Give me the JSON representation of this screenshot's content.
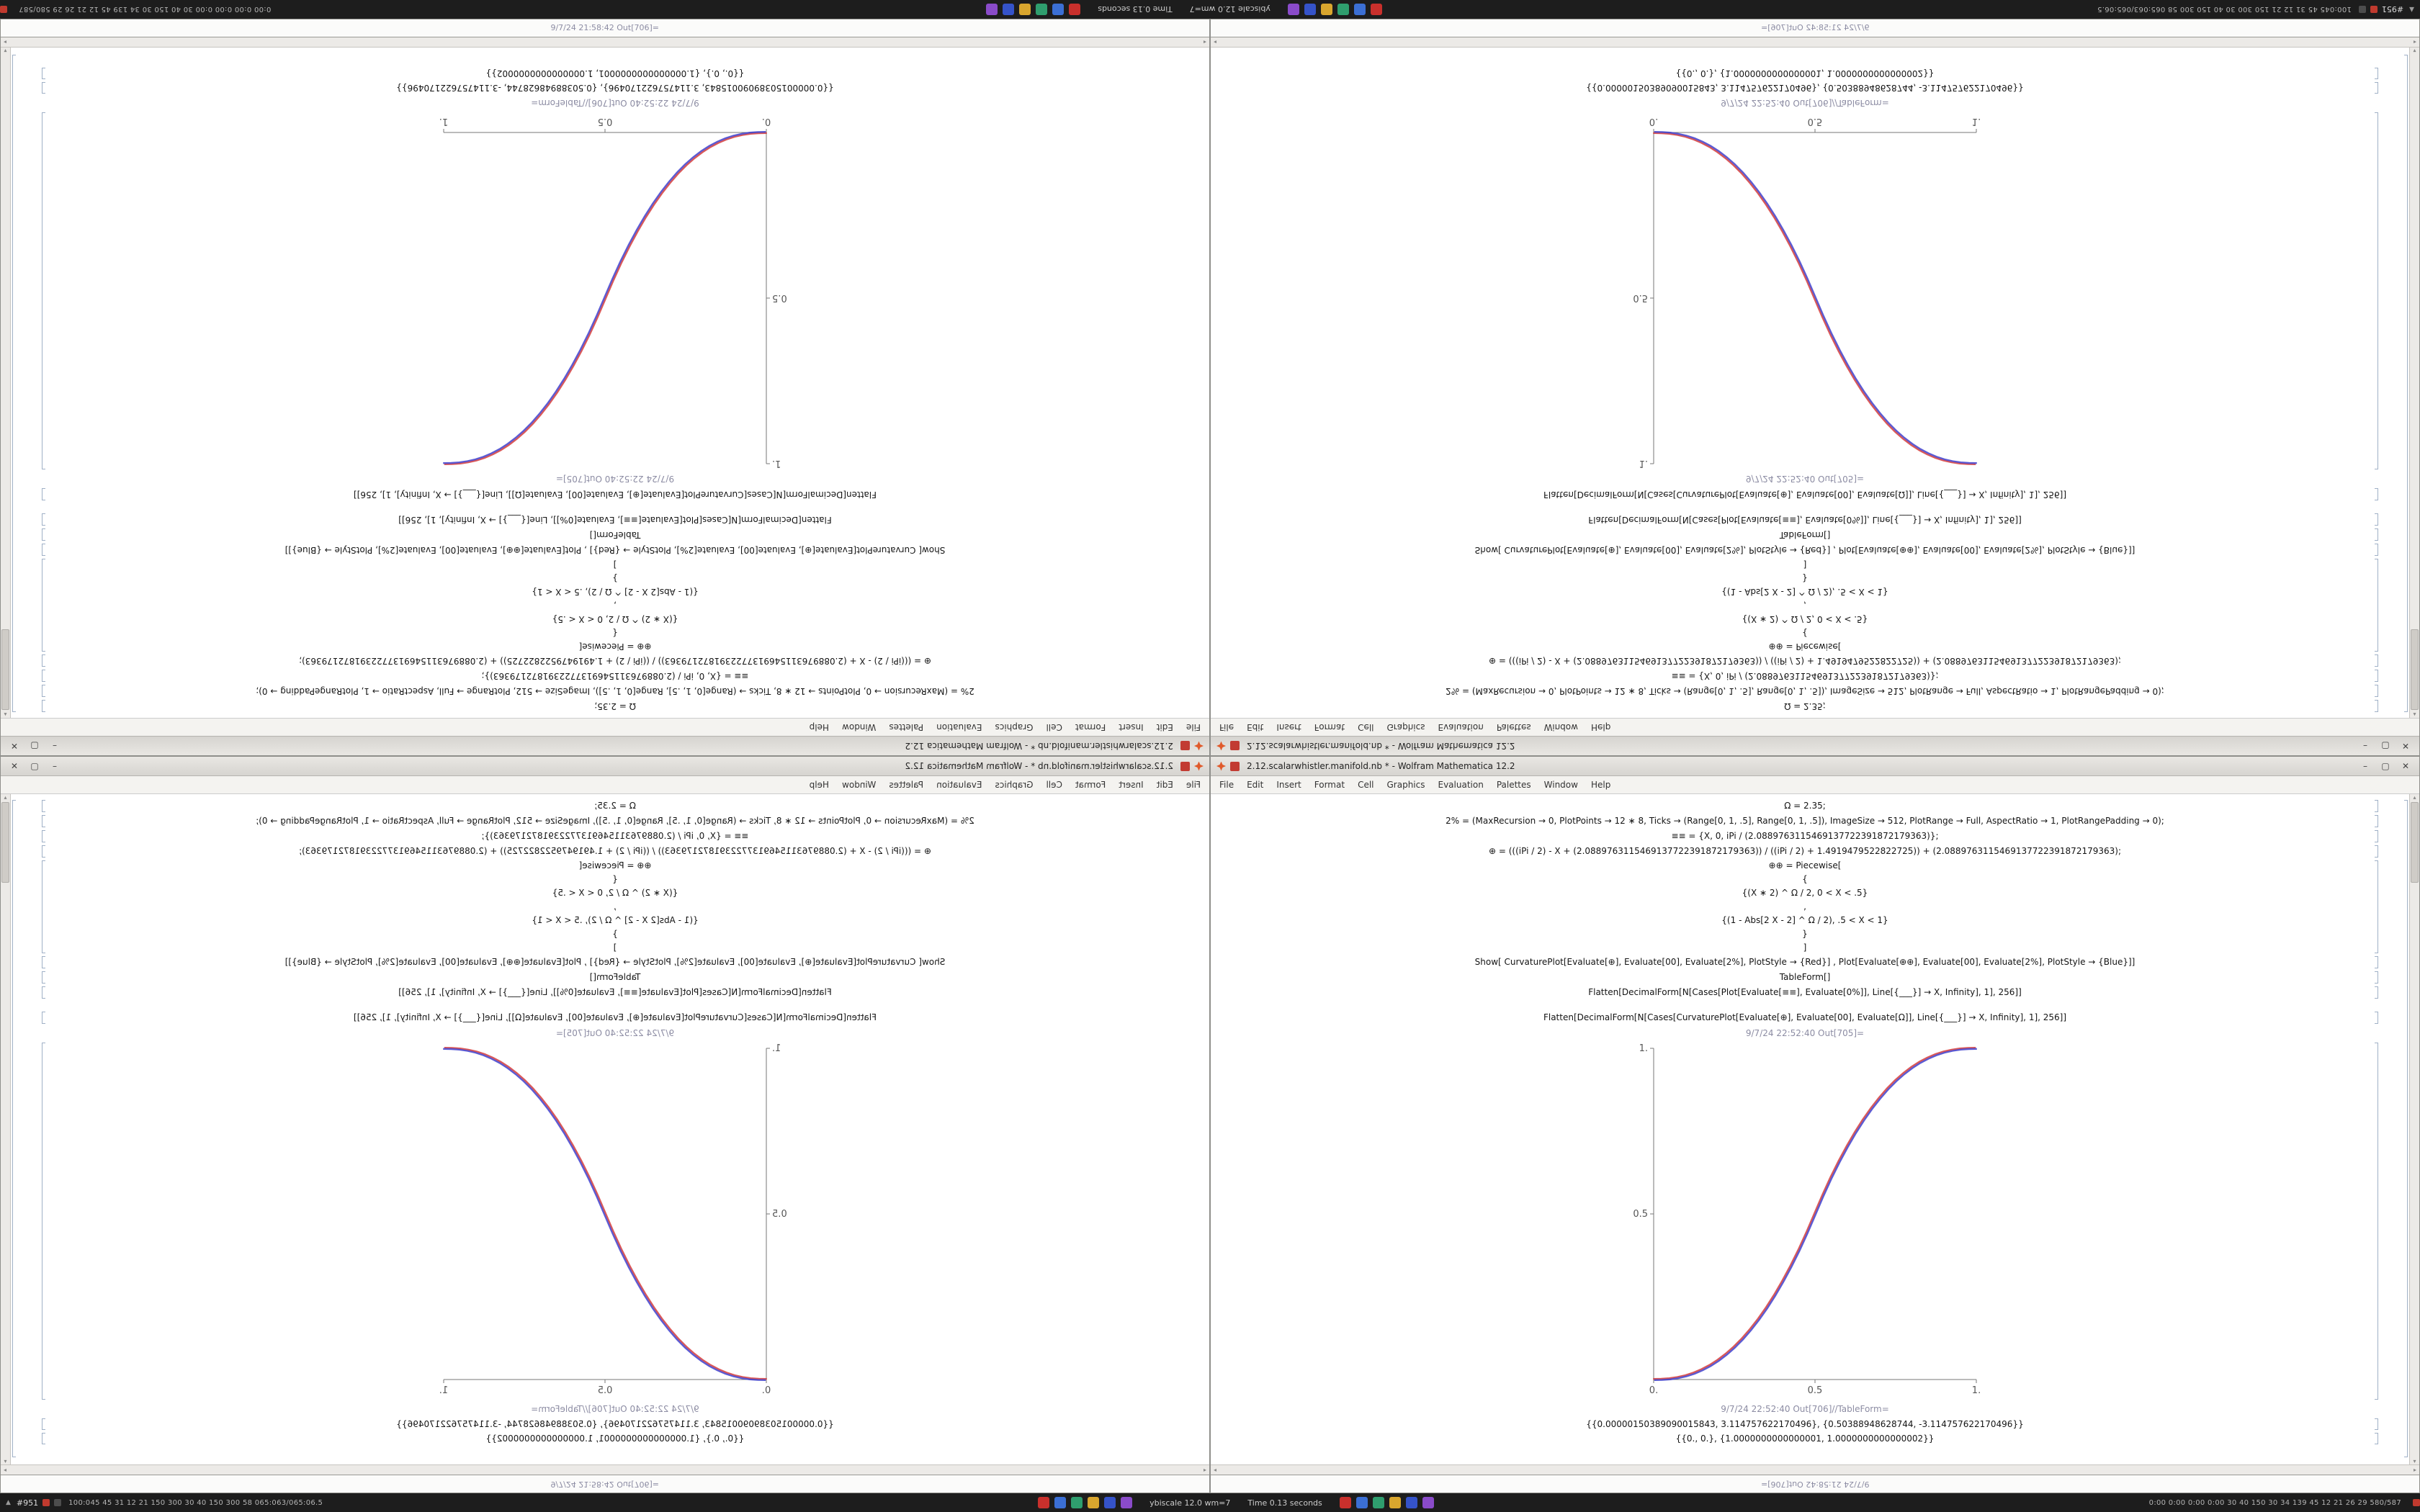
{
  "desktop": {
    "taskbar": {
      "left_marker": "#951",
      "left_stats": "100:045 45 31 12 21 150 300 30 40 150 300 58 065:063/065:06.5",
      "scale_label": "ybiscale 12.0 wm=7",
      "time_label": "Time 0.13 seconds",
      "right_stats": "0:00 0:00 0:00 0:00 30 40 150 30 34 139 45 12 21 26 29 580/587",
      "cluster_colors": [
        {
          "name": "record",
          "color": "#c9302c"
        },
        {
          "name": "chat",
          "color": "#3b6fd4"
        },
        {
          "name": "screen",
          "color": "#2f9e6e"
        },
        {
          "name": "alert",
          "color": "#d9a62e"
        },
        {
          "name": "files",
          "color": "#3553c9"
        },
        {
          "name": "media",
          "color": "#8a4bc9"
        }
      ]
    }
  },
  "window": {
    "title": "2.12.scalarwhistler.manifold.nb * - Wolfram Mathematica 12.2",
    "menu": [
      "File",
      "Edit",
      "Insert",
      "Format",
      "Cell",
      "Graphics",
      "Evaluation",
      "Palettes",
      "Window",
      "Help"
    ],
    "controls": {
      "minimize": "–",
      "maximize": "▢",
      "close": "✕"
    },
    "cells": {
      "in1": "Ω = 2.35;",
      "in2": "2% = (MaxRecursion → 0, PlotPoints → 12 ∗ 8, Ticks → (Range[0, 1, .5], Range[0, 1, .5]), ImageSize → 512, PlotRange → Full, AspectRatio → 1, PlotRangePadding → 0);",
      "in3": "≡≡ = {X, 0, iPi / (2.0889763115469137722391872179363)};",
      "in4": "⊕ = (((iPi / 2) - X + (2.0889763115469137722391872179363)) / ((iPi / 2) + 1.4919479522822725)) + (2.0889763115469137722391872179363);",
      "in5_lines": [
        "⊕⊕ = Piecewise[",
        "{",
        "{(X ∗ 2) ^ Ω / 2, 0 < X < .5}",
        ",",
        "{(1 - Abs[2 X - 2] ^ Ω / 2), .5 < X < 1}",
        "}",
        "]"
      ],
      "in6": "Show[  CurvaturePlot[Evaluate[⊕], Evaluate[00], Evaluate[2%], PlotStyle → {Red}] ,  Plot[Evaluate[⊕⊕], Evaluate[00], Evaluate[2%], PlotStyle → {Blue}]]",
      "in7": "TableForm[]",
      "in8": "Flatten[DecimalForm[N[Cases[Plot[Evaluate[≡≡], Evaluate[0%]], Line[{___}] → X, Infinity], 1], 256]]",
      "in9": "Flatten[DecimalForm[N[Cases[CurvaturePlot[Evaluate[⊕], Evaluate[00], Evaluate[Ω]], Line[{___}] → X, Infinity], 1], 256]]",
      "out1_label": "9/7/24 22:52:40 Out[705]=",
      "out2_label": "9/7/24 22:52:40 Out[706]//TableForm=",
      "out2_line1": "{{0.00000150389090015843, 3.114757622170496}, {0.50388948628744, -3.114757622170496}}",
      "out2_line2": "{{0., 0.}, {1.0000000000000001, 1.0000000000000002}}",
      "peek_label": "9/7/24 21:58:42 Out[706]="
    }
  },
  "chart_data": {
    "type": "line",
    "title": "",
    "xlabel": "",
    "ylabel": "",
    "xlim": [
      0,
      1
    ],
    "ylim": [
      0,
      1
    ],
    "grid": false,
    "legend": "none",
    "x_ticks": [
      "0.",
      "0.5",
      "1."
    ],
    "x_tick_vals": [
      0,
      0.5,
      1
    ],
    "y_ticks": [
      "0.5",
      "1."
    ],
    "y_tick_vals": [
      0.5,
      1
    ],
    "x": [
      0,
      0.025,
      0.05,
      0.075,
      0.1,
      0.125,
      0.15,
      0.175,
      0.2,
      0.225,
      0.25,
      0.275,
      0.3,
      0.325,
      0.35,
      0.375,
      0.4,
      0.425,
      0.45,
      0.475,
      0.5,
      0.525,
      0.55,
      0.575,
      0.6,
      0.625,
      0.65,
      0.675,
      0.7,
      0.725,
      0.75,
      0.775,
      0.8,
      0.825,
      0.85,
      0.875,
      0.9,
      0.925,
      0.95,
      0.975,
      1
    ],
    "series": [
      {
        "name": "CurvaturePlot (Red)",
        "color": "#d43c3c",
        "dx": -0.8,
        "dy": -0.8,
        "y": [
          0,
          0.0004,
          0.0022,
          0.0058,
          0.0114,
          0.0192,
          0.0295,
          0.0424,
          0.0581,
          0.0766,
          0.0981,
          0.1227,
          0.1506,
          0.1817,
          0.2163,
          0.2543,
          0.296,
          0.3413,
          0.3903,
          0.4433,
          0.5,
          0.5568,
          0.6097,
          0.6587,
          0.704,
          0.7457,
          0.7837,
          0.8183,
          0.8494,
          0.8773,
          0.9019,
          0.9235,
          0.9419,
          0.9576,
          0.9705,
          0.9808,
          0.9886,
          0.9942,
          0.9978,
          0.9996,
          1
        ]
      },
      {
        "name": "Plot (Blue)",
        "color": "#4040cc",
        "dx": 0.8,
        "dy": 0.8,
        "y": [
          0,
          0.0004,
          0.0022,
          0.0058,
          0.0114,
          0.0192,
          0.0295,
          0.0424,
          0.0581,
          0.0766,
          0.0981,
          0.1227,
          0.1506,
          0.1817,
          0.2163,
          0.2543,
          0.296,
          0.3413,
          0.3903,
          0.4433,
          0.5,
          0.5568,
          0.6097,
          0.6587,
          0.704,
          0.7457,
          0.7837,
          0.8183,
          0.8494,
          0.8773,
          0.9019,
          0.9235,
          0.9419,
          0.9576,
          0.9705,
          0.9808,
          0.9886,
          0.9942,
          0.9978,
          0.9996,
          1
        ]
      }
    ]
  }
}
